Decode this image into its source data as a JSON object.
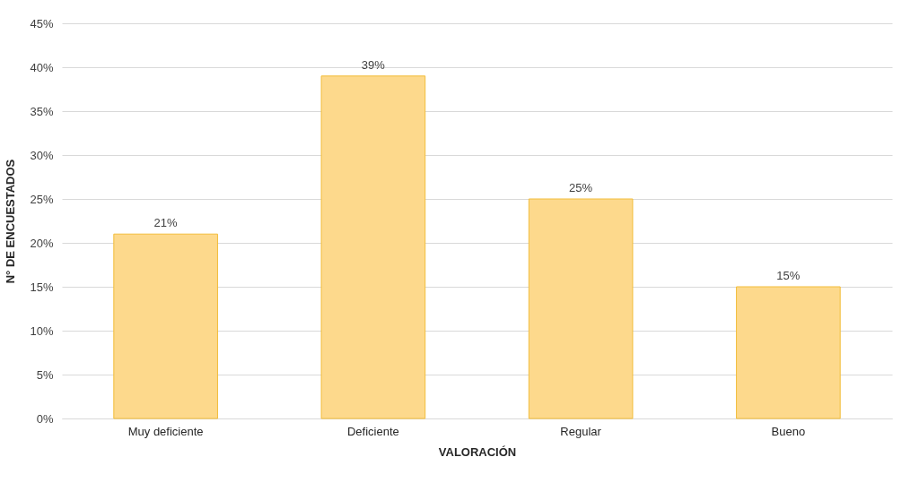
{
  "chart_data": {
    "type": "bar",
    "xlabel": "VALORACIÓN",
    "ylabel": "N° DE ENCUESTADOS",
    "categories": [
      "Muy deficiente",
      "Deficiente",
      "Regular",
      "Bueno"
    ],
    "values": [
      21,
      39,
      25,
      15
    ],
    "value_labels": [
      "21%",
      "39%",
      "25%",
      "15%"
    ],
    "color": "#fdd98c",
    "ylim": [
      0,
      45
    ],
    "yticks": [
      {
        "value": 0,
        "label": "0%"
      },
      {
        "value": 5,
        "label": "5%"
      },
      {
        "value": 10,
        "label": "10%"
      },
      {
        "value": 15,
        "label": "15%"
      },
      {
        "value": 20,
        "label": "20%"
      },
      {
        "value": 25,
        "label": "25%"
      },
      {
        "value": 30,
        "label": "30%"
      },
      {
        "value": 35,
        "label": "35%"
      },
      {
        "value": 40,
        "label": "40%"
      },
      {
        "value": 45,
        "label": "45%"
      }
    ],
    "grid": "y"
  }
}
